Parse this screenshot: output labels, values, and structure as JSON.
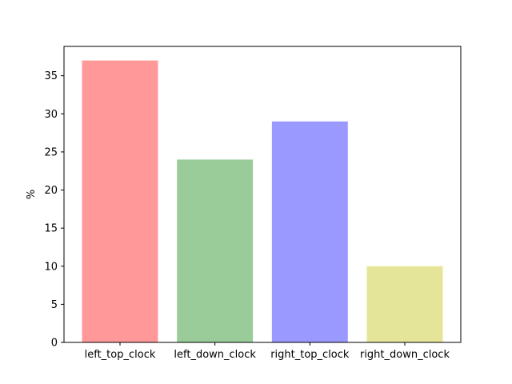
{
  "chart_data": {
    "type": "bar",
    "title": "",
    "xlabel": "",
    "ylabel": "%",
    "ylim": [
      0,
      38.85
    ],
    "yticks": [
      0,
      5,
      10,
      15,
      20,
      25,
      30,
      35
    ],
    "grid": false,
    "categories": [
      "left_top_clock",
      "left_down_clock",
      "right_top_clock",
      "right_down_clock"
    ],
    "values": [
      37,
      24,
      29,
      10
    ],
    "colors": [
      "#ff9999",
      "#99cc99",
      "#9999ff",
      "#e5e599"
    ]
  }
}
